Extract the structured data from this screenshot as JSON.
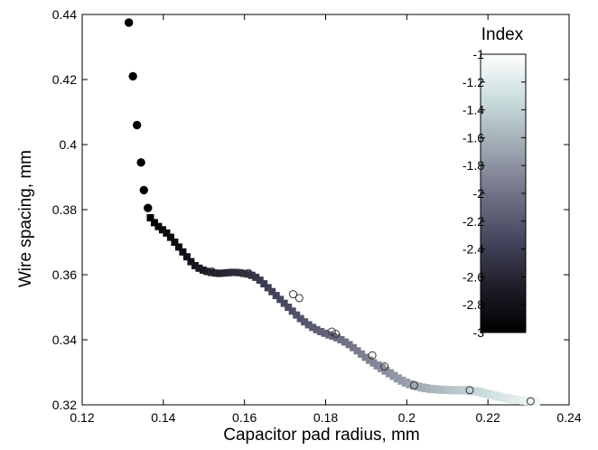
{
  "chart_data": {
    "type": "scatter",
    "title": "",
    "xlabel": "Capacitor pad radius, mm",
    "ylabel": "Wire spacing, mm",
    "xlim": [
      0.12,
      0.24
    ],
    "ylim": [
      0.32,
      0.44
    ],
    "xticks": [
      "0.12",
      "0.14",
      "0.16",
      "0.18",
      "0.2",
      "0.22",
      "0.24"
    ],
    "yticks": [
      "0.32",
      "0.34",
      "0.36",
      "0.38",
      "0.4",
      "0.42",
      "0.44"
    ],
    "grid": false,
    "legend": "none",
    "colorbar": {
      "title": "Index",
      "range": [
        -3,
        -1
      ],
      "ticks": [
        "-1",
        "-1.2",
        "-1.4",
        "-1.6",
        "-1.8",
        "-2",
        "-2.2",
        "-2.4",
        "-2.6",
        "-2.8",
        "-3"
      ],
      "tick_values": [
        -1,
        -1.2,
        -1.4,
        -1.6,
        -1.8,
        -2,
        -2.2,
        -2.4,
        -2.6,
        -2.8,
        -3
      ],
      "colors": [
        "#000000",
        "#1e1e2a",
        "#46465e",
        "#727288",
        "#9ea8b2",
        "#c8dcdc",
        "#ffffff"
      ],
      "placement": "right-inside"
    },
    "series": [
      {
        "marker": "filled-circle",
        "x": [
          0.1315,
          0.1325,
          0.1335,
          0.1345,
          0.1352,
          0.1362
        ],
        "y": [
          0.4375,
          0.421,
          0.406,
          0.3945,
          0.386,
          0.3805
        ],
        "index": [
          -3.0,
          -3.0,
          -3.0,
          -3.0,
          -3.0,
          -3.0
        ]
      },
      {
        "marker": "filled-square",
        "x": [
          0.1368,
          0.1378,
          0.1388,
          0.1398,
          0.1408,
          0.1418,
          0.1428,
          0.1438,
          0.1448,
          0.1458,
          0.1468,
          0.1478,
          0.1488,
          0.1498,
          0.1508,
          0.1518,
          0.1528,
          0.1538,
          0.1548,
          0.1558,
          0.1568,
          0.1578,
          0.1588,
          0.1598,
          0.1608,
          0.1618,
          0.1628,
          0.1638,
          0.1648,
          0.1658,
          0.1668,
          0.1678,
          0.1688,
          0.1698,
          0.1708,
          0.1718,
          0.1728,
          0.1738,
          0.1748,
          0.1758,
          0.1768,
          0.1778,
          0.1788,
          0.1798,
          0.1808,
          0.1818,
          0.1828,
          0.1838,
          0.1848,
          0.1858,
          0.1868,
          0.1878,
          0.1888,
          0.1898,
          0.1908,
          0.1918
        ],
        "y": [
          0.3775,
          0.376,
          0.3748,
          0.3738,
          0.3728,
          0.3715,
          0.37,
          0.3685,
          0.367,
          0.3655,
          0.364,
          0.3628,
          0.362,
          0.3614,
          0.361,
          0.3607,
          0.3605,
          0.3604,
          0.3605,
          0.3606,
          0.3607,
          0.3607,
          0.3606,
          0.3604,
          0.3602,
          0.3598,
          0.3592,
          0.3583,
          0.3572,
          0.356,
          0.3548,
          0.3536,
          0.3524,
          0.3512,
          0.35,
          0.3488,
          0.3476,
          0.3465,
          0.3455,
          0.3446,
          0.3438,
          0.3431,
          0.3425,
          0.342,
          0.3415,
          0.3411,
          0.3406,
          0.34,
          0.3393,
          0.3385,
          0.3376,
          0.3366,
          0.3356,
          0.3346,
          0.3337,
          0.3329
        ],
        "index": [
          -2.98,
          -2.96,
          -2.94,
          -2.92,
          -2.9,
          -2.88,
          -2.86,
          -2.84,
          -2.82,
          -2.8,
          -2.78,
          -2.76,
          -2.74,
          -2.72,
          -2.7,
          -2.68,
          -2.66,
          -2.64,
          -2.62,
          -2.6,
          -2.58,
          -2.56,
          -2.54,
          -2.52,
          -2.5,
          -2.48,
          -2.46,
          -2.44,
          -2.42,
          -2.4,
          -2.38,
          -2.36,
          -2.34,
          -2.32,
          -2.3,
          -2.28,
          -2.26,
          -2.24,
          -2.22,
          -2.2,
          -2.18,
          -2.16,
          -2.14,
          -2.12,
          -2.1,
          -2.08,
          -2.06,
          -2.04,
          -2.02,
          -2.0,
          -1.98,
          -1.96,
          -1.94,
          -1.92,
          -1.9,
          -1.88
        ]
      },
      {
        "marker": "light-square",
        "x": [
          0.1928,
          0.1938,
          0.1948,
          0.1958,
          0.1968,
          0.1978,
          0.1988,
          0.1998,
          0.2008,
          0.2018,
          0.2028,
          0.2038,
          0.2048,
          0.2058,
          0.2068,
          0.2078,
          0.2088,
          0.2098,
          0.2108,
          0.2118,
          0.2128,
          0.2138,
          0.2148,
          0.2158,
          0.2168,
          0.2178,
          0.2188,
          0.2198,
          0.2208,
          0.2218,
          0.2228,
          0.2238,
          0.2248,
          0.2258,
          0.2268,
          0.2278,
          0.2288,
          0.2298,
          0.2308,
          0.2318
        ],
        "y": [
          0.3321,
          0.3313,
          0.3305,
          0.3297,
          0.3289,
          0.3281,
          0.3274,
          0.3268,
          0.3263,
          0.3259,
          0.3256,
          0.3253,
          0.3251,
          0.3249,
          0.3248,
          0.3247,
          0.3246,
          0.3246,
          0.3245,
          0.3245,
          0.3245,
          0.3245,
          0.3244,
          0.3243,
          0.3242,
          0.324,
          0.3237,
          0.3234,
          0.3231,
          0.3228,
          0.3225,
          0.3222,
          0.322,
          0.3218,
          0.3216,
          0.3214,
          0.3213,
          0.3212,
          0.3211,
          0.321
        ],
        "index": [
          -1.86,
          -1.84,
          -1.82,
          -1.8,
          -1.78,
          -1.76,
          -1.74,
          -1.72,
          -1.7,
          -1.68,
          -1.66,
          -1.64,
          -1.62,
          -1.6,
          -1.58,
          -1.56,
          -1.54,
          -1.52,
          -1.5,
          -1.48,
          -1.46,
          -1.44,
          -1.42,
          -1.4,
          -1.38,
          -1.36,
          -1.34,
          -1.32,
          -1.3,
          -1.28,
          -1.26,
          -1.24,
          -1.22,
          -1.2,
          -1.18,
          -1.16,
          -1.14,
          -1.12,
          -1.1,
          -1.08
        ]
      },
      {
        "marker": "open-circle",
        "x": [
          0.152,
          0.161,
          0.172,
          0.1735,
          0.1815,
          0.1825,
          0.1915,
          0.1945,
          0.2018,
          0.2155,
          0.2305
        ],
        "y": [
          0.361,
          0.3605,
          0.354,
          0.3528,
          0.3425,
          0.3418,
          0.3352,
          0.3318,
          0.326,
          0.3245,
          0.3211
        ],
        "index": [
          -2.68,
          -2.5,
          -2.3,
          -2.28,
          -2.08,
          -2.06,
          -1.88,
          -1.82,
          -1.68,
          -1.4,
          -1.08
        ]
      }
    ]
  }
}
